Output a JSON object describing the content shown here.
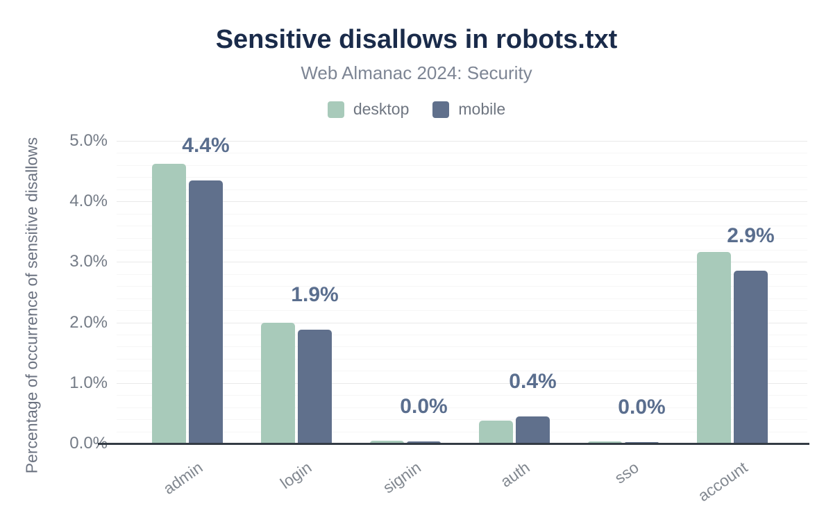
{
  "header": {
    "title": "Sensitive disallows in robots.txt",
    "subtitle": "Web Almanac 2024: Security"
  },
  "legend": [
    {
      "label": "desktop",
      "color": "#a8caba"
    },
    {
      "label": "mobile",
      "color": "#60708c"
    }
  ],
  "colors": {
    "desktop": "#a8caba",
    "mobile": "#60708c",
    "title": "#1a2b4a",
    "bar_label": "#5a6e8e",
    "axis_line": "#333b44"
  },
  "chart_data": {
    "type": "bar",
    "title": "Sensitive disallows in robots.txt",
    "subtitle": "Web Almanac 2024: Security",
    "categories": [
      "admin",
      "login",
      "signin",
      "auth",
      "sso",
      "account"
    ],
    "series": [
      {
        "name": "desktop",
        "color": "#a8caba",
        "values": [
          4.62,
          2.0,
          0.05,
          0.38,
          0.03,
          3.17
        ]
      },
      {
        "name": "mobile",
        "color": "#60708c",
        "values": [
          4.35,
          1.88,
          0.03,
          0.45,
          0.02,
          2.86
        ]
      }
    ],
    "bar_labels": [
      "4.4%",
      "1.9%",
      "0.0%",
      "0.4%",
      "0.0%",
      "2.9%"
    ],
    "bar_labels_series": "mobile",
    "xlabel": "",
    "ylabel": "Percentage of occurrence of sensitive disallows",
    "ylim": [
      0,
      5
    ],
    "ytick_values": [
      0,
      1,
      2,
      3,
      4,
      5
    ],
    "yticks": [
      "0.0%",
      "1.0%",
      "2.0%",
      "3.0%",
      "4.0%",
      "5.0%"
    ],
    "grid": {
      "major_step": 1.0,
      "minor_step": 0.2
    },
    "legend_position": "top"
  }
}
